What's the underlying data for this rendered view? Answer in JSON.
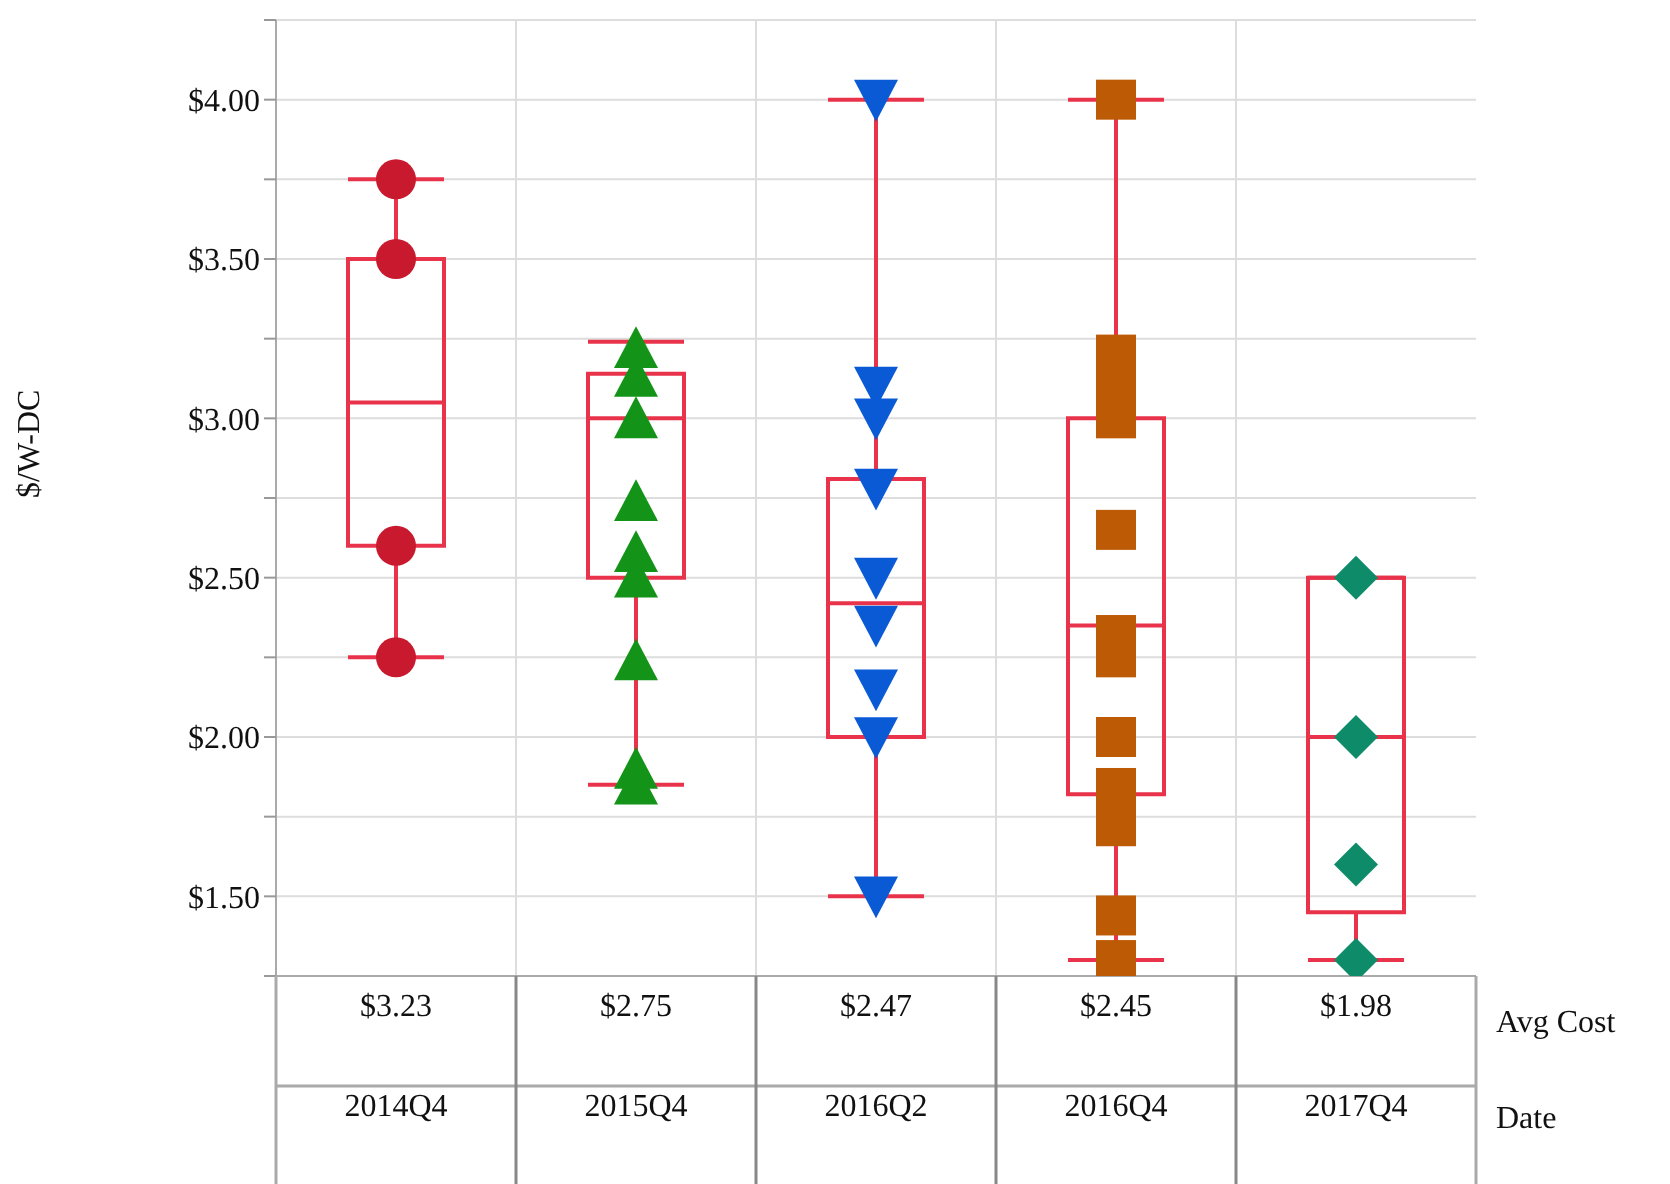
{
  "chart_data": {
    "type": "box",
    "ylabel": "$/W-DC",
    "xlabel": "Date",
    "categories": [
      "2014Q4",
      "2015Q4",
      "2016Q2",
      "2016Q4",
      "2017Q4"
    ],
    "color": "#e8334a",
    "boxes": [
      {
        "low": 2.25,
        "q1": 2.6,
        "median": 3.05,
        "q3": 3.5,
        "high": 3.75
      },
      {
        "low": 1.85,
        "q1": 2.5,
        "median": 3.0,
        "q3": 3.14,
        "high": 3.24
      },
      {
        "low": 1.5,
        "q1": 2.0,
        "median": 2.42,
        "q3": 2.81,
        "high": 4.0
      },
      {
        "low": 1.3,
        "q1": 1.82,
        "median": 2.35,
        "q3": 3.0,
        "high": 4.0
      },
      {
        "low": 1.3,
        "q1": 1.45,
        "median": 2.0,
        "q3": 2.5,
        "high": 2.5
      }
    ],
    "series": [
      {
        "type": "scatter",
        "color": "#c8192e",
        "marker": "circle",
        "x": [
          "2014Q4",
          "2014Q4",
          "2014Q4",
          "2014Q4"
        ],
        "values": [
          3.75,
          3.5,
          2.6,
          2.25
        ]
      },
      {
        "type": "scatter",
        "color": "#139418",
        "marker": "triangle",
        "x": [
          "2015Q4",
          "2015Q4",
          "2015Q4",
          "2015Q4",
          "2015Q4",
          "2015Q4",
          "2015Q4",
          "2015Q4",
          "2015Q4"
        ],
        "values": [
          3.22,
          3.13,
          3.0,
          2.74,
          2.58,
          2.5,
          2.24,
          1.9,
          1.85
        ]
      },
      {
        "type": "scatter",
        "color": "#0a5ad6",
        "marker": "triangle-down",
        "x": [
          "2016Q2",
          "2016Q2",
          "2016Q2",
          "2016Q2",
          "2016Q2",
          "2016Q2",
          "2016Q2",
          "2016Q2",
          "2016Q2"
        ],
        "values": [
          4.0,
          3.1,
          3.0,
          2.78,
          2.5,
          2.35,
          2.15,
          2.0,
          1.5
        ]
      },
      {
        "type": "scatter",
        "color": "#bd5a05",
        "marker": "square",
        "x": [
          "2016Q4",
          "2016Q4",
          "2016Q4",
          "2016Q4",
          "2016Q4",
          "2016Q4",
          "2016Q4",
          "2016Q4",
          "2016Q4",
          "2016Q4",
          "2016Q4",
          "2016Q4"
        ],
        "values": [
          4.0,
          3.2,
          3.12,
          3.0,
          2.65,
          2.32,
          2.25,
          2.0,
          1.84,
          1.72,
          1.44,
          1.3
        ]
      },
      {
        "type": "scatter",
        "color": "#0e8c6a",
        "marker": "diamond",
        "x": [
          "2017Q4",
          "2017Q4",
          "2017Q4",
          "2017Q4"
        ],
        "values": [
          2.5,
          2.0,
          1.6,
          1.3
        ]
      }
    ],
    "ylim": [
      1.25,
      4.25
    ],
    "yticks": [
      {
        "value": 1.25,
        "label": null
      },
      {
        "value": 1.5,
        "label": "$1.50"
      },
      {
        "value": 1.75,
        "label": null
      },
      {
        "value": 2.0,
        "label": "$2.00"
      },
      {
        "value": 2.25,
        "label": null
      },
      {
        "value": 2.5,
        "label": "$2.50"
      },
      {
        "value": 2.75,
        "label": null
      },
      {
        "value": 3.0,
        "label": "$3.00"
      },
      {
        "value": 3.25,
        "label": null
      },
      {
        "value": 3.5,
        "label": "$3.50"
      },
      {
        "value": 3.75,
        "label": null
      },
      {
        "value": 4.0,
        "label": "$4.00"
      },
      {
        "value": 4.25,
        "label": null
      }
    ],
    "grid": true,
    "annotations": [
      "Avg Cost",
      "$3.23",
      "$2.75",
      "$2.47",
      "$2.45",
      "$1.98"
    ]
  }
}
